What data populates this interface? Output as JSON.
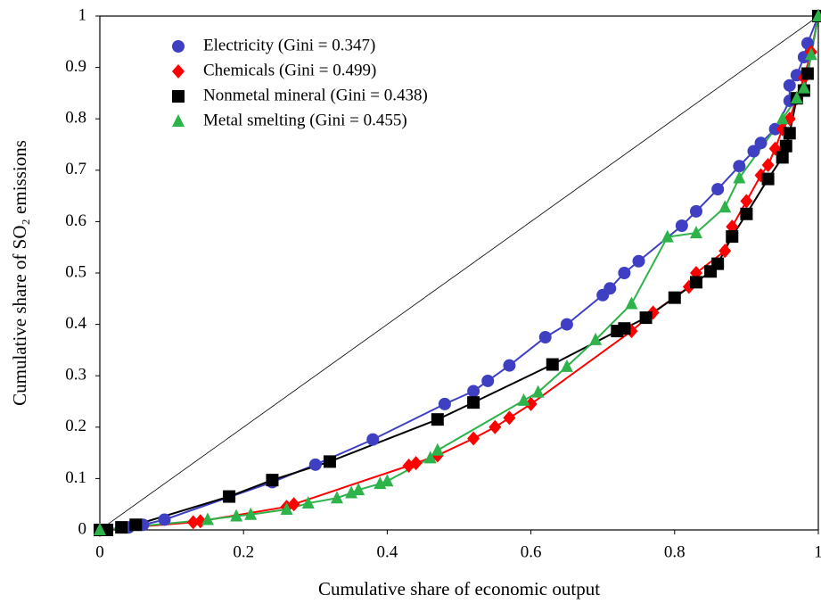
{
  "chart_data": {
    "type": "scatter-line",
    "x_label": "Cumulative share of economic output",
    "y_label": "Cumulative share of SO₂ emissions",
    "xlim": [
      0,
      1
    ],
    "ylim": [
      0,
      1
    ],
    "xticks": [
      0,
      0.2,
      0.4,
      0.6,
      0.8,
      1
    ],
    "yticks": [
      0,
      0.1,
      0.2,
      0.3,
      0.4,
      0.5,
      0.6,
      0.7,
      0.8,
      0.9,
      1
    ],
    "grid": false,
    "legend": "upper left",
    "series": [
      {
        "name": "Electricity (Gini = 0.347)",
        "color": "#3f3fc4",
        "marker": "circle",
        "x": [
          0,
          0.04,
          0.06,
          0.09,
          0.24,
          0.3,
          0.38,
          0.48,
          0.52,
          0.54,
          0.57,
          0.62,
          0.65,
          0.7,
          0.71,
          0.73,
          0.75,
          0.81,
          0.83,
          0.86,
          0.89,
          0.91,
          0.92,
          0.94,
          0.96,
          0.96,
          0.97,
          0.98,
          0.985,
          1
        ],
        "values": [
          0,
          0.005,
          0.01,
          0.02,
          0.093,
          0.127,
          0.176,
          0.245,
          0.27,
          0.29,
          0.32,
          0.375,
          0.4,
          0.457,
          0.47,
          0.5,
          0.523,
          0.592,
          0.62,
          0.663,
          0.708,
          0.737,
          0.753,
          0.78,
          0.835,
          0.865,
          0.885,
          0.92,
          0.947,
          1
        ]
      },
      {
        "name": "Chemicals (Gini = 0.499)",
        "color": "#ff0000",
        "marker": "diamond",
        "x": [
          0,
          0.13,
          0.14,
          0.26,
          0.27,
          0.43,
          0.44,
          0.47,
          0.52,
          0.55,
          0.57,
          0.6,
          0.74,
          0.77,
          0.82,
          0.83,
          0.87,
          0.88,
          0.9,
          0.92,
          0.93,
          0.94,
          0.95,
          0.96,
          0.97,
          0.98,
          0.99,
          1
        ],
        "values": [
          0,
          0.015,
          0.017,
          0.045,
          0.05,
          0.125,
          0.13,
          0.145,
          0.178,
          0.2,
          0.218,
          0.245,
          0.387,
          0.423,
          0.473,
          0.5,
          0.543,
          0.59,
          0.64,
          0.69,
          0.71,
          0.742,
          0.78,
          0.8,
          0.84,
          0.88,
          0.93,
          1
        ]
      },
      {
        "name": "Nonmetal mineral (Gini = 0.438)",
        "color": "#000000",
        "marker": "square",
        "x": [
          0,
          0.01,
          0.03,
          0.05,
          0.18,
          0.24,
          0.32,
          0.47,
          0.52,
          0.63,
          0.72,
          0.73,
          0.76,
          0.8,
          0.83,
          0.85,
          0.86,
          0.88,
          0.9,
          0.93,
          0.95,
          0.955,
          0.96,
          0.97,
          0.98,
          0.985,
          1
        ],
        "values": [
          0,
          0,
          0.005,
          0.01,
          0.065,
          0.097,
          0.133,
          0.215,
          0.248,
          0.322,
          0.387,
          0.392,
          0.413,
          0.452,
          0.482,
          0.503,
          0.518,
          0.571,
          0.615,
          0.683,
          0.725,
          0.747,
          0.772,
          0.84,
          0.855,
          0.888,
          1
        ]
      },
      {
        "name": "Metal smelting (Gini = 0.455)",
        "color": "#2db34a",
        "marker": "triangle",
        "x": [
          0,
          0.15,
          0.19,
          0.21,
          0.26,
          0.29,
          0.33,
          0.35,
          0.36,
          0.39,
          0.4,
          0.46,
          0.47,
          0.59,
          0.61,
          0.65,
          0.69,
          0.74,
          0.79,
          0.83,
          0.87,
          0.89,
          0.95,
          0.97,
          0.98,
          0.99,
          1
        ],
        "values": [
          0,
          0.02,
          0.027,
          0.03,
          0.04,
          0.052,
          0.062,
          0.072,
          0.078,
          0.09,
          0.095,
          0.14,
          0.155,
          0.252,
          0.268,
          0.318,
          0.37,
          0.44,
          0.57,
          0.578,
          0.628,
          0.685,
          0.8,
          0.84,
          0.86,
          0.925,
          1
        ]
      }
    ]
  }
}
